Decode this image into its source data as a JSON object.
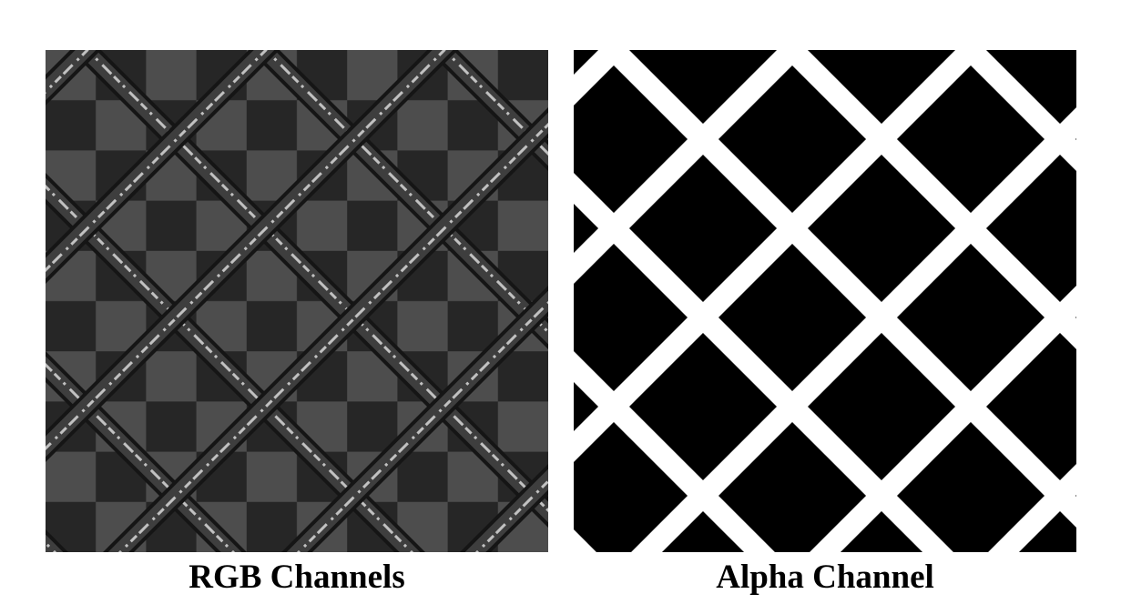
{
  "figure": {
    "panels": [
      {
        "id": "rgb",
        "caption": "RGB Channels",
        "content": "dark checkerboard with diagonal metallic wire lattice",
        "colors": {
          "checker_dark": "#262626",
          "checker_light": "#4d4d4d",
          "wire_dark": "#151515",
          "wire_mid": "#3e3e3e",
          "wire_highlight": "#d9d9d9"
        }
      },
      {
        "id": "alpha",
        "caption": "Alpha Channel",
        "content": "white diagonal lattice lines on black (mask of the wires)",
        "colors": {
          "background": "#000000",
          "lines": "#ffffff"
        }
      }
    ]
  }
}
